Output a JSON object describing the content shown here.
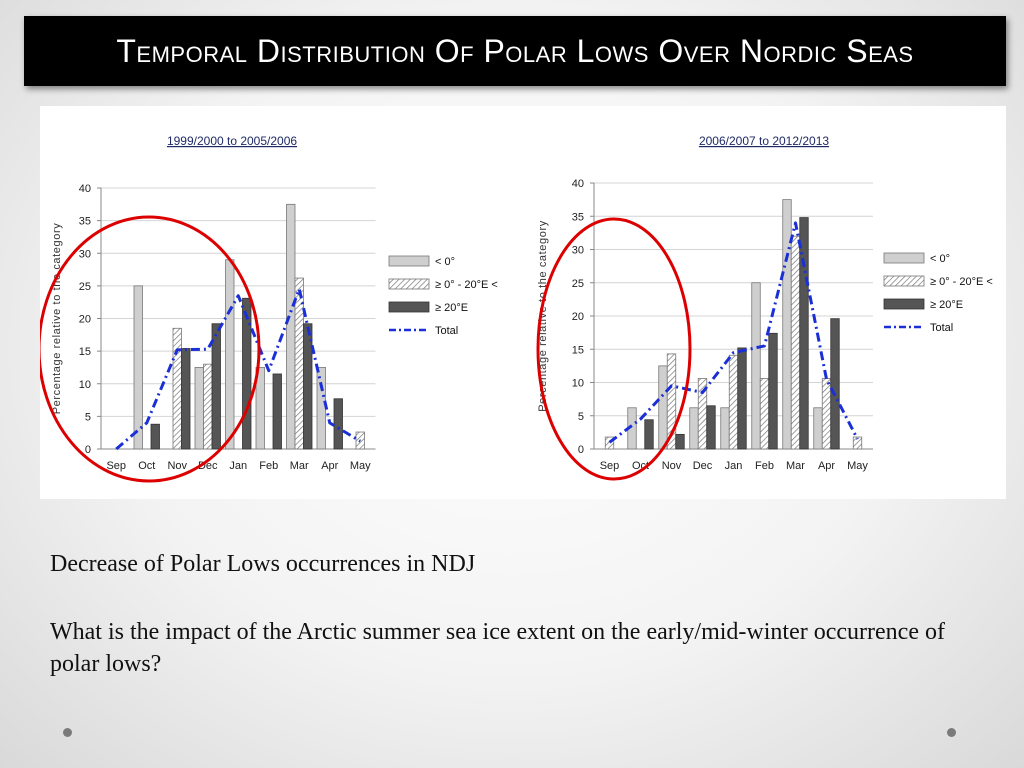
{
  "slide": {
    "title": "Temporal Distribution Of Polar Lows Over Nordic Seas",
    "paragraph_1": "Decrease of Polar Lows occurrences in NDJ",
    "paragraph_2": "What is the impact of the Arctic summer sea ice extent on the early/mid-winter occurrence of polar lows?"
  },
  "chart_data": [
    {
      "type": "bar",
      "title": "1999/2000 to 2005/2006",
      "ylabel": "Percentage relative to the category",
      "xlabel": "",
      "ylim": [
        0,
        40
      ],
      "yticks": [
        0,
        5,
        10,
        15,
        20,
        25,
        30,
        35,
        40
      ],
      "grid": true,
      "legend_position": "right",
      "categories": [
        "Sep",
        "Oct",
        "Nov",
        "Dec",
        "Jan",
        "Feb",
        "Mar",
        "Apr",
        "May"
      ],
      "series": [
        {
          "name": "< 0°",
          "kind": "bar",
          "style": "light-gray",
          "values": [
            0,
            25,
            0,
            12.5,
            29,
            12.5,
            37.5,
            12.5,
            0
          ]
        },
        {
          "name": "≥ 0° - 20°E <",
          "kind": "bar",
          "style": "hatched",
          "values": [
            0,
            0,
            18.5,
            13,
            0,
            0,
            26.2,
            0,
            2.6
          ]
        },
        {
          "name": "≥ 20°E",
          "kind": "bar",
          "style": "dark-gray",
          "values": [
            0,
            3.8,
            15.4,
            19.2,
            23.1,
            11.5,
            19.2,
            7.7,
            0
          ]
        },
        {
          "name": "Total",
          "kind": "line",
          "style": "blue-dash-dot",
          "values": [
            0,
            4,
            15.2,
            15.3,
            23.5,
            12,
            24.5,
            4,
            1.2
          ]
        }
      ],
      "annotation": {
        "kind": "ellipse",
        "color": "#dd0000",
        "span": [
          "Oct",
          "Jan"
        ]
      }
    },
    {
      "type": "bar",
      "title": "2006/2007 to 2012/2013",
      "ylabel": "Percentage relative to the category",
      "xlabel": "",
      "ylim": [
        0,
        40
      ],
      "yticks": [
        0,
        5,
        10,
        15,
        20,
        25,
        30,
        35,
        40
      ],
      "grid": true,
      "legend_position": "right",
      "categories": [
        "Sep",
        "Oct",
        "Nov",
        "Dec",
        "Jan",
        "Feb",
        "Mar",
        "Apr",
        "May"
      ],
      "series": [
        {
          "name": "< 0°",
          "kind": "bar",
          "style": "light-gray",
          "values": [
            0,
            6.2,
            12.5,
            6.2,
            6.2,
            25,
            37.5,
            6.2,
            0
          ]
        },
        {
          "name": "≥ 0° - 20°E <",
          "kind": "bar",
          "style": "hatched",
          "values": [
            1.8,
            0,
            14.3,
            10.6,
            14.1,
            10.6,
            32,
            10.6,
            1.8
          ]
        },
        {
          "name": "≥ 20°E",
          "kind": "bar",
          "style": "dark-gray",
          "values": [
            0,
            4.4,
            2.2,
            6.5,
            15.2,
            17.4,
            34.8,
            19.6,
            0
          ]
        },
        {
          "name": "Total",
          "kind": "line",
          "style": "blue-dash-dot",
          "values": [
            1,
            4.5,
            9.5,
            8.5,
            14.5,
            15.5,
            34,
            10.5,
            1.5
          ]
        }
      ],
      "annotation": {
        "kind": "ellipse",
        "color": "#dd0000",
        "span": [
          "Sep",
          "Jan"
        ]
      }
    }
  ]
}
